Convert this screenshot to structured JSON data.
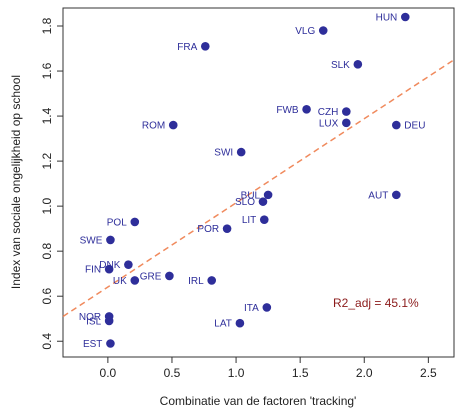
{
  "chart_data": {
    "type": "scatter",
    "title": "",
    "xlabel": "Combinatie van de factoren 'tracking'",
    "ylabel": "Index van sociale ongelijkheid op school",
    "xlim": [
      -0.35,
      2.7
    ],
    "ylim": [
      0.33,
      1.88
    ],
    "xticks": [
      "0.0",
      "0.5",
      "1.0",
      "1.5",
      "2.0",
      "2.5"
    ],
    "yticks": [
      "0.4",
      "0.6",
      "0.8",
      "1.0",
      "1.2",
      "1.4",
      "1.6",
      "1.8"
    ],
    "grid": false,
    "point_color": "#2e2e9a",
    "label_color": "#2e2e9a",
    "fit_line": {
      "style": "dashed",
      "color": "#f08a5d",
      "x": [
        -0.35,
        2.7
      ],
      "y": [
        0.51,
        1.65
      ]
    },
    "annotation": {
      "text": "R2_adj = 45.1%",
      "color": "#8b1a1a"
    },
    "points": [
      {
        "label": "HUN",
        "x": 2.32,
        "y": 1.84,
        "label_side": "left"
      },
      {
        "label": "VLG",
        "x": 1.68,
        "y": 1.78,
        "label_side": "left"
      },
      {
        "label": "FRA",
        "x": 0.76,
        "y": 1.71,
        "label_side": "left"
      },
      {
        "label": "SLK",
        "x": 1.95,
        "y": 1.63,
        "label_side": "left"
      },
      {
        "label": "FWB",
        "x": 1.55,
        "y": 1.43,
        "label_side": "left"
      },
      {
        "label": "CZH",
        "x": 1.86,
        "y": 1.42,
        "label_side": "left"
      },
      {
        "label": "LUX",
        "x": 1.86,
        "y": 1.37,
        "label_side": "left"
      },
      {
        "label": "DEU",
        "x": 2.25,
        "y": 1.36,
        "label_side": "right"
      },
      {
        "label": "ROM",
        "x": 0.51,
        "y": 1.36,
        "label_side": "left"
      },
      {
        "label": "SWI",
        "x": 1.04,
        "y": 1.24,
        "label_side": "left"
      },
      {
        "label": "AUT",
        "x": 2.25,
        "y": 1.05,
        "label_side": "left"
      },
      {
        "label": "BUL",
        "x": 1.25,
        "y": 1.05,
        "label_side": "left"
      },
      {
        "label": "SLO",
        "x": 1.21,
        "y": 1.02,
        "label_side": "left"
      },
      {
        "label": "LIT",
        "x": 1.22,
        "y": 0.94,
        "label_side": "left"
      },
      {
        "label": "POL",
        "x": 0.21,
        "y": 0.93,
        "label_side": "left"
      },
      {
        "label": "POR",
        "x": 0.93,
        "y": 0.9,
        "label_side": "left"
      },
      {
        "label": "SWE",
        "x": 0.02,
        "y": 0.85,
        "label_side": "left"
      },
      {
        "label": "DNK",
        "x": 0.16,
        "y": 0.74,
        "label_side": "left"
      },
      {
        "label": "FIN",
        "x": 0.01,
        "y": 0.72,
        "label_side": "left"
      },
      {
        "label": "GRE",
        "x": 0.48,
        "y": 0.69,
        "label_side": "left"
      },
      {
        "label": "IRL",
        "x": 0.81,
        "y": 0.67,
        "label_side": "left"
      },
      {
        "label": "UK",
        "x": 0.21,
        "y": 0.67,
        "label_side": "left"
      },
      {
        "label": "ITA",
        "x": 1.24,
        "y": 0.55,
        "label_side": "left"
      },
      {
        "label": "NOR",
        "x": 0.01,
        "y": 0.51,
        "label_side": "left"
      },
      {
        "label": "ISL",
        "x": 0.01,
        "y": 0.49,
        "label_side": "left"
      },
      {
        "label": "LAT",
        "x": 1.03,
        "y": 0.48,
        "label_side": "left"
      },
      {
        "label": "EST",
        "x": 0.02,
        "y": 0.39,
        "label_side": "left"
      }
    ]
  }
}
